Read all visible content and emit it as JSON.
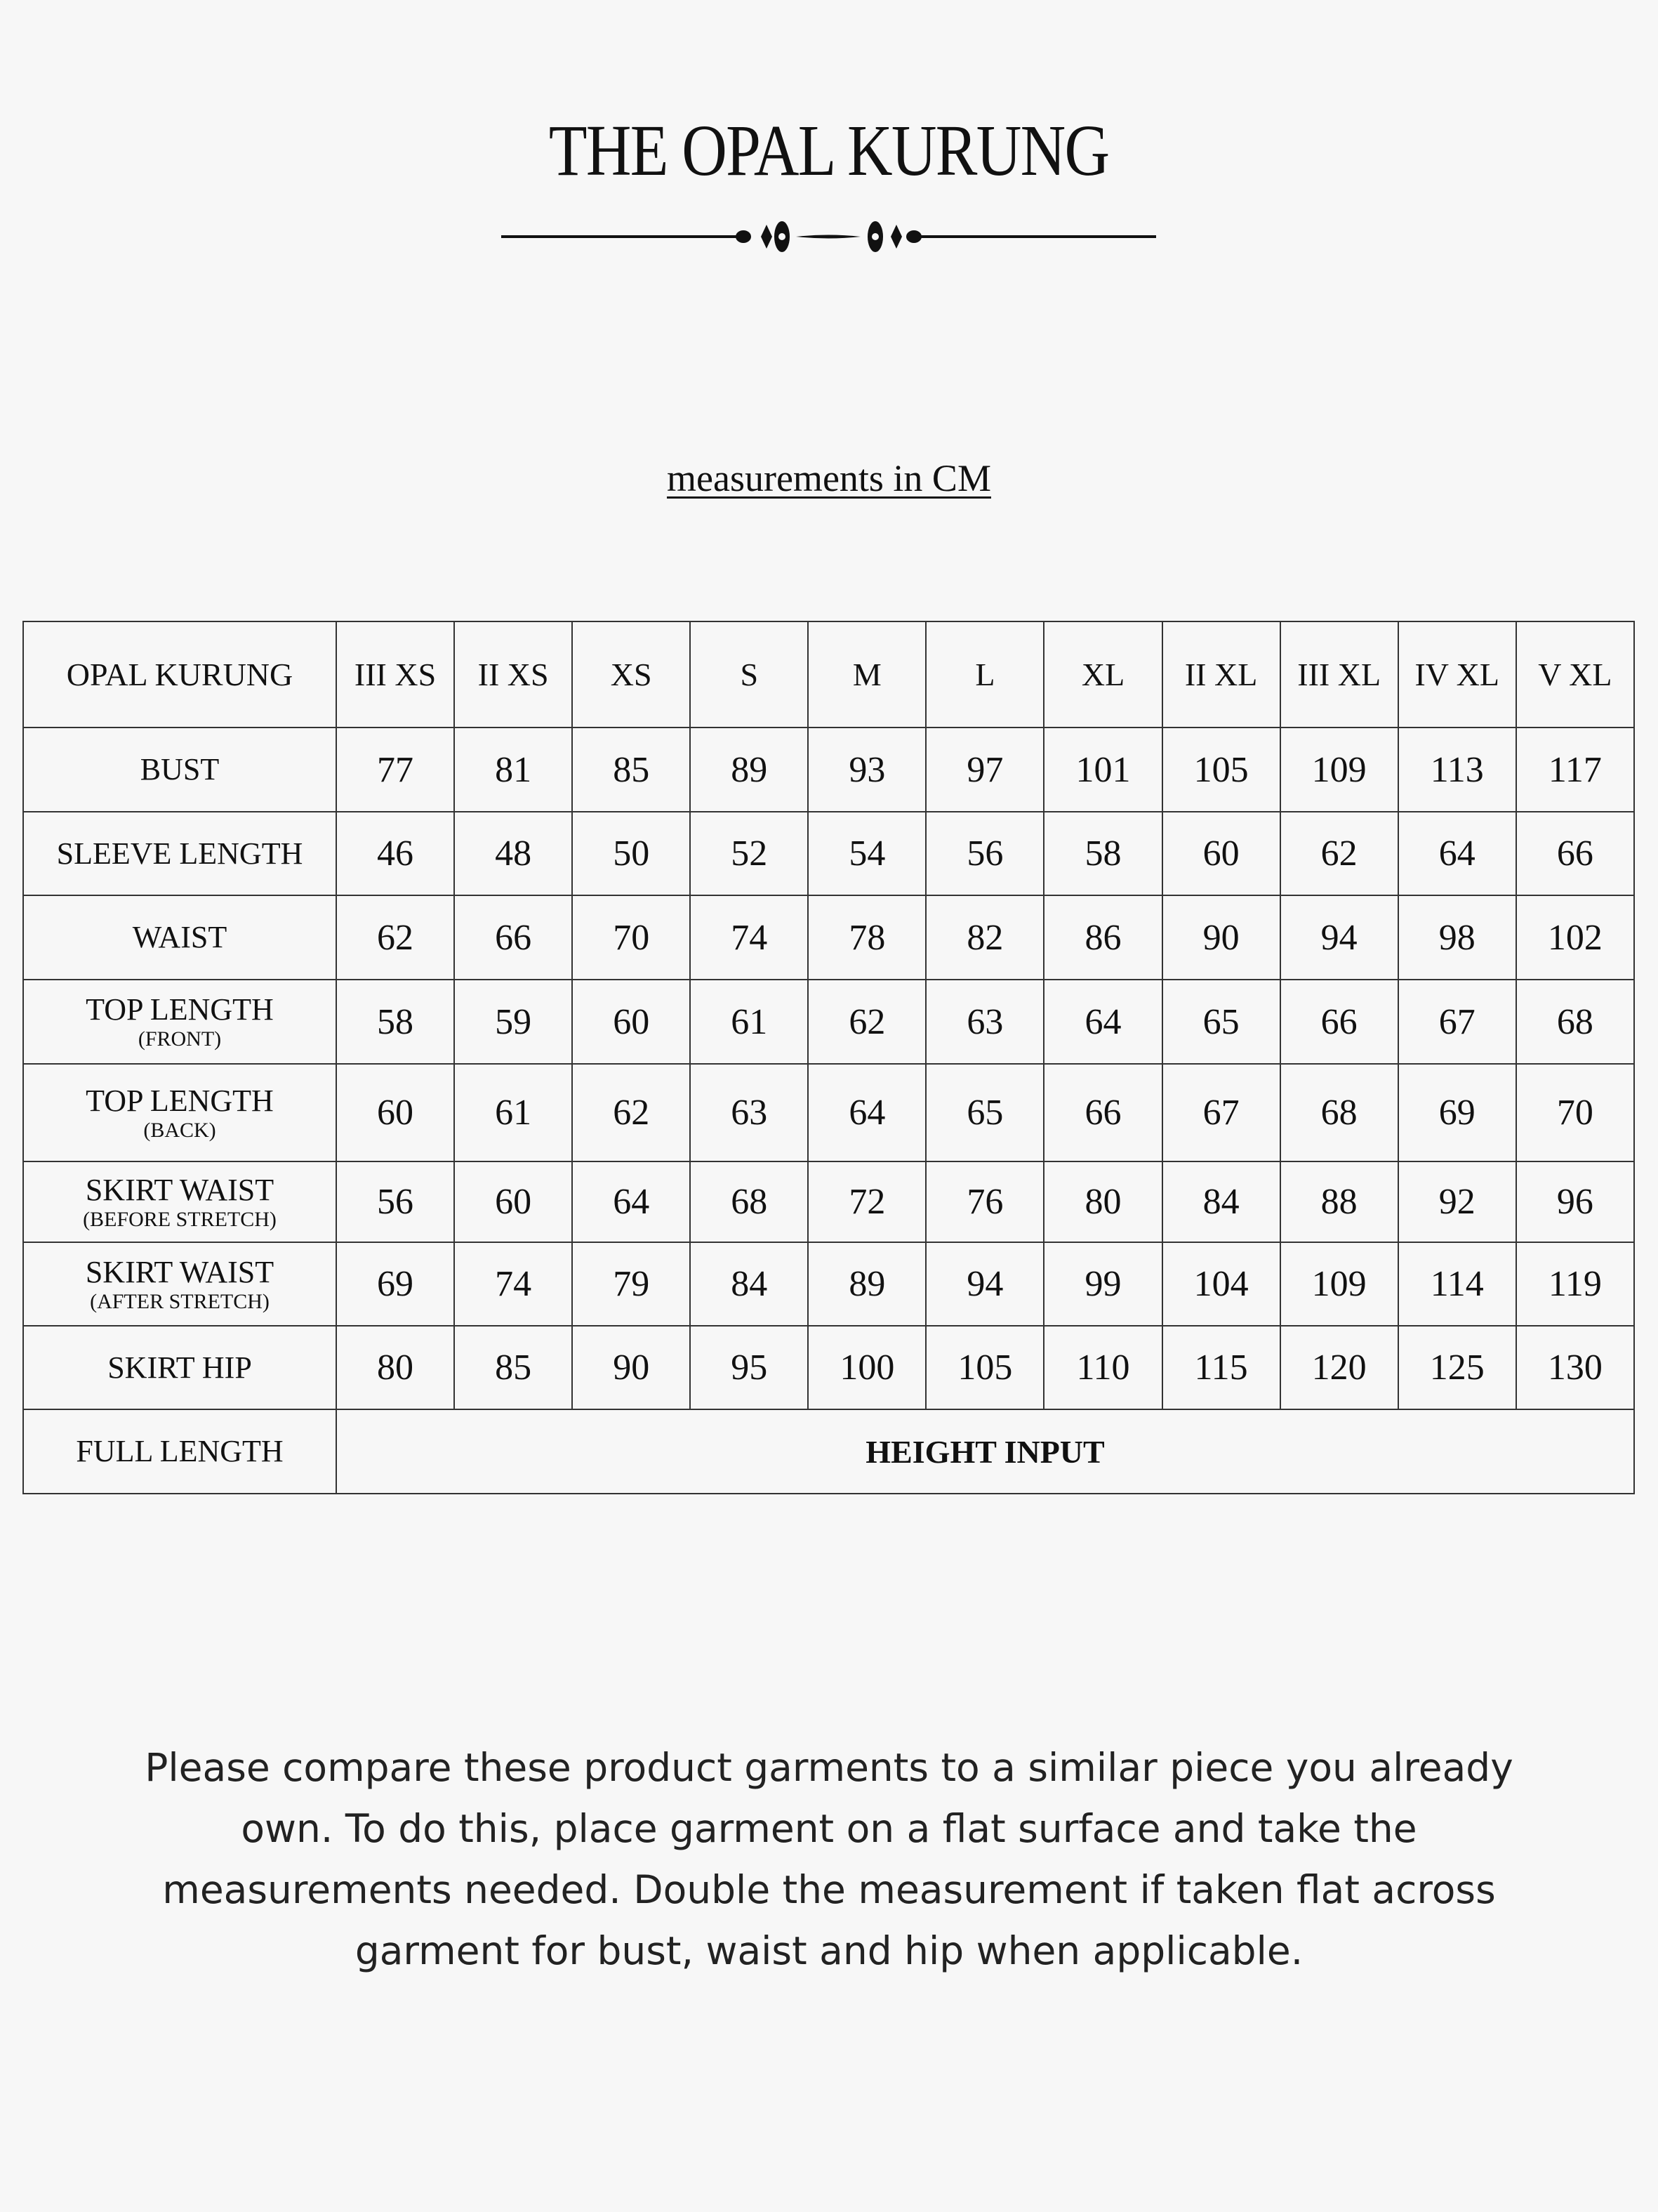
{
  "title": "THE OPAL KURUNG",
  "subtitle": "measurements in CM",
  "table": {
    "corner": "OPAL KURUNG",
    "sizes": [
      "III XS",
      "II XS",
      "XS",
      "S",
      "M",
      "L",
      "XL",
      "II XL",
      "III XL",
      "IV XL",
      "V XL"
    ],
    "rows": [
      {
        "label": "BUST",
        "sub": "",
        "values": [
          77,
          81,
          85,
          89,
          93,
          97,
          101,
          105,
          109,
          113,
          117
        ]
      },
      {
        "label": "SLEEVE LENGTH",
        "sub": "",
        "values": [
          46,
          48,
          50,
          52,
          54,
          56,
          58,
          60,
          62,
          64,
          66
        ]
      },
      {
        "label": "WAIST",
        "sub": "",
        "values": [
          62,
          66,
          70,
          74,
          78,
          82,
          86,
          90,
          94,
          98,
          102
        ]
      },
      {
        "label": "TOP LENGTH",
        "sub": "(FRONT)",
        "values": [
          58,
          59,
          60,
          61,
          62,
          63,
          64,
          65,
          66,
          67,
          68
        ]
      },
      {
        "label": "TOP LENGTH",
        "sub": "(BACK)",
        "values": [
          60,
          61,
          62,
          63,
          64,
          65,
          66,
          67,
          68,
          69,
          70
        ]
      },
      {
        "label": "SKIRT WAIST",
        "sub": "(BEFORE  STRETCH)",
        "values": [
          56,
          60,
          64,
          68,
          72,
          76,
          80,
          84,
          88,
          92,
          96
        ]
      },
      {
        "label": "SKIRT WAIST",
        "sub": "(AFTER STRETCH)",
        "values": [
          69,
          74,
          79,
          84,
          89,
          94,
          99,
          104,
          109,
          114,
          119
        ]
      },
      {
        "label": "SKIRT HIP",
        "sub": "",
        "values": [
          80,
          85,
          90,
          95,
          100,
          105,
          110,
          115,
          120,
          125,
          130
        ]
      }
    ],
    "full_length": {
      "label": "FULL LENGTH",
      "value": "HEIGHT INPUT"
    }
  },
  "note": "Please compare these product garments to a similar piece you already own.  To do this, place garment on a flat surface and take the measurements needed. Double the measurement if taken flat across garment for bust, waist and hip when applicable."
}
